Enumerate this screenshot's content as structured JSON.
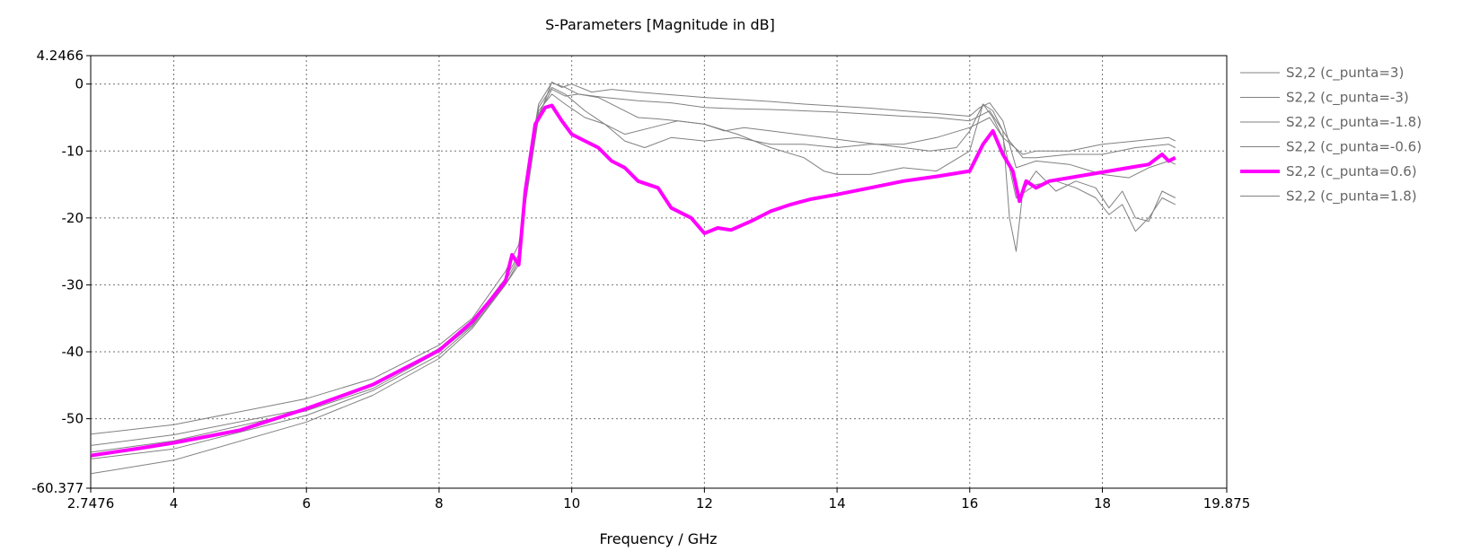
{
  "chart_data": {
    "type": "line",
    "title": "S-Parameters [Magnitude in dB]",
    "xlabel": "Frequency / GHz",
    "ylabel": "",
    "xlim": [
      2.7476,
      19.875
    ],
    "ylim": [
      -60.377,
      4.2466
    ],
    "x_ticks": [
      "2.7476",
      "4",
      "6",
      "8",
      "10",
      "12",
      "14",
      "16",
      "18",
      "19.875"
    ],
    "y_ticks": [
      "4.2466",
      "0",
      "-10",
      "-20",
      "-30",
      "-40",
      "-50",
      "-60.377"
    ],
    "grid": true,
    "legend_position": "right",
    "colors": {
      "highlight": "#ff00ff",
      "other": "#808080"
    },
    "series": [
      {
        "name": "S2,2 (c_punta=3)",
        "highlight": false,
        "points": [
          [
            2.75,
            -52.3
          ],
          [
            4,
            -50.9
          ],
          [
            6,
            -47.0
          ],
          [
            7,
            -44.0
          ],
          [
            8,
            -39.0
          ],
          [
            8.5,
            -35.0
          ],
          [
            9.0,
            -28.0
          ],
          [
            9.2,
            -24.0
          ],
          [
            9.3,
            -18.0
          ],
          [
            9.5,
            -5.0
          ],
          [
            9.7,
            0.3
          ],
          [
            9.85,
            -0.5
          ],
          [
            10,
            0.0
          ],
          [
            10.3,
            -1.2
          ],
          [
            10.6,
            -0.8
          ],
          [
            11,
            -1.2
          ],
          [
            11.5,
            -1.6
          ],
          [
            12,
            -2.0
          ],
          [
            12.5,
            -2.3
          ],
          [
            13,
            -2.6
          ],
          [
            13.5,
            -3.0
          ],
          [
            14,
            -3.3
          ],
          [
            14.5,
            -3.6
          ],
          [
            15,
            -4.0
          ],
          [
            15.5,
            -4.4
          ],
          [
            16,
            -4.8
          ],
          [
            16.15,
            -3.5
          ],
          [
            16.3,
            -2.8
          ],
          [
            16.5,
            -5.5
          ],
          [
            16.7,
            -12.5
          ],
          [
            17,
            -11.5
          ],
          [
            17.5,
            -12.0
          ],
          [
            18,
            -13.5
          ],
          [
            18.4,
            -14.0
          ],
          [
            18.7,
            -12.5
          ],
          [
            19,
            -11.5
          ],
          [
            19.1,
            -12.0
          ]
        ]
      },
      {
        "name": "S2,2 (c_punta=-3)",
        "highlight": false,
        "points": [
          [
            2.75,
            -58.2
          ],
          [
            4,
            -56.2
          ],
          [
            6,
            -50.5
          ],
          [
            7,
            -46.5
          ],
          [
            8,
            -41.0
          ],
          [
            8.5,
            -36.5
          ],
          [
            9.0,
            -30.0
          ],
          [
            9.2,
            -27.0
          ],
          [
            9.3,
            -15.0
          ],
          [
            9.5,
            -3.0
          ],
          [
            9.7,
            0.2
          ],
          [
            9.9,
            -0.5
          ],
          [
            10.1,
            -1.5
          ],
          [
            10.4,
            -2.0
          ],
          [
            10.7,
            -3.5
          ],
          [
            11,
            -5.0
          ],
          [
            11.3,
            -5.2
          ],
          [
            11.6,
            -5.5
          ],
          [
            12,
            -6.0
          ],
          [
            12.3,
            -7.0
          ],
          [
            12.6,
            -6.5
          ],
          [
            13,
            -7.0
          ],
          [
            13.4,
            -7.5
          ],
          [
            13.8,
            -8.0
          ],
          [
            14.2,
            -8.5
          ],
          [
            14.6,
            -9.0
          ],
          [
            15,
            -9.5
          ],
          [
            15.4,
            -10.0
          ],
          [
            15.8,
            -9.5
          ],
          [
            16.0,
            -7.0
          ],
          [
            16.2,
            -3.0
          ],
          [
            16.35,
            -5.0
          ],
          [
            16.5,
            -8.0
          ],
          [
            16.7,
            -17.0
          ],
          [
            17,
            -15.0
          ],
          [
            17.3,
            -14.5
          ],
          [
            17.6,
            -15.5
          ],
          [
            17.9,
            -17.0
          ],
          [
            18.1,
            -19.5
          ],
          [
            18.3,
            -18.0
          ],
          [
            18.5,
            -22.0
          ],
          [
            18.7,
            -20.0
          ],
          [
            18.9,
            -17.0
          ],
          [
            19.1,
            -18.0
          ]
        ]
      },
      {
        "name": "S2,2 (c_punta=-1.8)",
        "highlight": false,
        "points": [
          [
            2.75,
            -54.0
          ],
          [
            4,
            -52.4
          ],
          [
            6,
            -48.5
          ],
          [
            7,
            -45.0
          ],
          [
            8,
            -39.5
          ],
          [
            8.5,
            -35.5
          ],
          [
            9.0,
            -29.0
          ],
          [
            9.2,
            -25.5
          ],
          [
            9.3,
            -17.0
          ],
          [
            9.5,
            -4.5
          ],
          [
            9.7,
            -0.8
          ],
          [
            9.9,
            -1.8
          ],
          [
            10.1,
            -1.5
          ],
          [
            10.5,
            -2.0
          ],
          [
            11,
            -2.5
          ],
          [
            11.5,
            -2.8
          ],
          [
            12,
            -3.5
          ],
          [
            12.5,
            -3.7
          ],
          [
            13,
            -3.8
          ],
          [
            13.5,
            -4.0
          ],
          [
            14,
            -4.2
          ],
          [
            14.5,
            -4.5
          ],
          [
            15,
            -4.8
          ],
          [
            15.5,
            -5.0
          ],
          [
            16,
            -5.5
          ],
          [
            16.3,
            -4.0
          ],
          [
            16.6,
            -8.5
          ],
          [
            16.8,
            -11.0
          ],
          [
            17,
            -11.0
          ],
          [
            17.5,
            -10.5
          ],
          [
            18,
            -10.5
          ],
          [
            18.5,
            -9.5
          ],
          [
            19,
            -9.0
          ],
          [
            19.1,
            -9.5
          ]
        ]
      },
      {
        "name": "S2,2 (c_punta=-0.6)",
        "highlight": false,
        "points": [
          [
            2.75,
            -55.0
          ],
          [
            4,
            -53.3
          ],
          [
            6,
            -48.8
          ],
          [
            7,
            -45.5
          ],
          [
            8,
            -40.0
          ],
          [
            8.5,
            -36.0
          ],
          [
            9.0,
            -29.5
          ],
          [
            9.2,
            -26.0
          ],
          [
            9.3,
            -16.5
          ],
          [
            9.5,
            -4.0
          ],
          [
            9.7,
            -1.5
          ],
          [
            9.9,
            -3.0
          ],
          [
            10.2,
            -5.0
          ],
          [
            10.5,
            -6.0
          ],
          [
            10.8,
            -8.5
          ],
          [
            11.1,
            -9.5
          ],
          [
            11.5,
            -8.0
          ],
          [
            12,
            -8.5
          ],
          [
            12.5,
            -8.0
          ],
          [
            13,
            -9.0
          ],
          [
            13.5,
            -9.0
          ],
          [
            14,
            -9.5
          ],
          [
            14.5,
            -9.0
          ],
          [
            15,
            -9.0
          ],
          [
            15.5,
            -8.0
          ],
          [
            16,
            -6.5
          ],
          [
            16.3,
            -5.0
          ],
          [
            16.5,
            -8.0
          ],
          [
            16.8,
            -10.5
          ],
          [
            17,
            -10.0
          ],
          [
            17.5,
            -10.0
          ],
          [
            18,
            -9.0
          ],
          [
            18.5,
            -8.5
          ],
          [
            19,
            -8.0
          ],
          [
            19.1,
            -8.5
          ]
        ]
      },
      {
        "name": "S2,2 (c_punta=0.6)",
        "highlight": true,
        "points": [
          [
            2.75,
            -55.5
          ],
          [
            3.5,
            -54.4
          ],
          [
            4,
            -53.6
          ],
          [
            5,
            -51.7
          ],
          [
            6,
            -48.5
          ],
          [
            7,
            -44.9
          ],
          [
            8,
            -39.8
          ],
          [
            8.5,
            -35.5
          ],
          [
            8.8,
            -32.0
          ],
          [
            9.0,
            -29.5
          ],
          [
            9.1,
            -25.5
          ],
          [
            9.2,
            -27.0
          ],
          [
            9.3,
            -16.0
          ],
          [
            9.45,
            -6.0
          ],
          [
            9.6,
            -3.5
          ],
          [
            9.7,
            -3.2
          ],
          [
            9.85,
            -5.5
          ],
          [
            10.0,
            -7.5
          ],
          [
            10.2,
            -8.5
          ],
          [
            10.4,
            -9.5
          ],
          [
            10.6,
            -11.5
          ],
          [
            10.8,
            -12.5
          ],
          [
            11.0,
            -14.5
          ],
          [
            11.3,
            -15.5
          ],
          [
            11.5,
            -18.5
          ],
          [
            11.8,
            -20.0
          ],
          [
            12.0,
            -22.3
          ],
          [
            12.2,
            -21.5
          ],
          [
            12.4,
            -21.8
          ],
          [
            12.7,
            -20.5
          ],
          [
            13.0,
            -19.0
          ],
          [
            13.3,
            -18.0
          ],
          [
            13.6,
            -17.2
          ],
          [
            14.0,
            -16.5
          ],
          [
            14.5,
            -15.5
          ],
          [
            15.0,
            -14.5
          ],
          [
            15.5,
            -13.8
          ],
          [
            16.0,
            -13.0
          ],
          [
            16.1,
            -11.0
          ],
          [
            16.2,
            -9.0
          ],
          [
            16.35,
            -7.0
          ],
          [
            16.5,
            -10.5
          ],
          [
            16.65,
            -13.0
          ],
          [
            16.75,
            -17.5
          ],
          [
            16.85,
            -14.5
          ],
          [
            17.0,
            -15.5
          ],
          [
            17.2,
            -14.5
          ],
          [
            17.5,
            -14.0
          ],
          [
            17.8,
            -13.5
          ],
          [
            18.1,
            -13.0
          ],
          [
            18.4,
            -12.5
          ],
          [
            18.7,
            -12.0
          ],
          [
            18.9,
            -10.5
          ],
          [
            19.0,
            -11.5
          ],
          [
            19.1,
            -11.0
          ]
        ]
      },
      {
        "name": "S2,2 (c_punta=1.8)",
        "highlight": false,
        "points": [
          [
            2.75,
            -56.0
          ],
          [
            4,
            -54.5
          ],
          [
            6,
            -49.5
          ],
          [
            7,
            -45.8
          ],
          [
            8,
            -40.5
          ],
          [
            8.5,
            -36.2
          ],
          [
            9.0,
            -30.0
          ],
          [
            9.2,
            -26.5
          ],
          [
            9.3,
            -16.0
          ],
          [
            9.5,
            -3.5
          ],
          [
            9.7,
            -0.5
          ],
          [
            9.9,
            -1.5
          ],
          [
            10.2,
            -4.0
          ],
          [
            10.5,
            -6.0
          ],
          [
            10.8,
            -7.5
          ],
          [
            11.2,
            -6.5
          ],
          [
            11.6,
            -5.5
          ],
          [
            12,
            -6.0
          ],
          [
            12.5,
            -7.5
          ],
          [
            13,
            -9.5
          ],
          [
            13.5,
            -11.0
          ],
          [
            13.8,
            -13.0
          ],
          [
            14,
            -13.5
          ],
          [
            14.5,
            -13.5
          ],
          [
            15,
            -12.5
          ],
          [
            15.5,
            -13.0
          ],
          [
            16,
            -10.0
          ],
          [
            16.2,
            -3.0
          ],
          [
            16.35,
            -4.0
          ],
          [
            16.5,
            -7.0
          ],
          [
            16.6,
            -20.0
          ],
          [
            16.7,
            -25.0
          ],
          [
            16.8,
            -16.0
          ],
          [
            17,
            -13.0
          ],
          [
            17.3,
            -16.0
          ],
          [
            17.6,
            -14.5
          ],
          [
            17.9,
            -15.5
          ],
          [
            18.1,
            -18.5
          ],
          [
            18.3,
            -16.0
          ],
          [
            18.5,
            -20.0
          ],
          [
            18.7,
            -20.5
          ],
          [
            18.9,
            -16.0
          ],
          [
            19.1,
            -17.0
          ]
        ]
      }
    ]
  }
}
